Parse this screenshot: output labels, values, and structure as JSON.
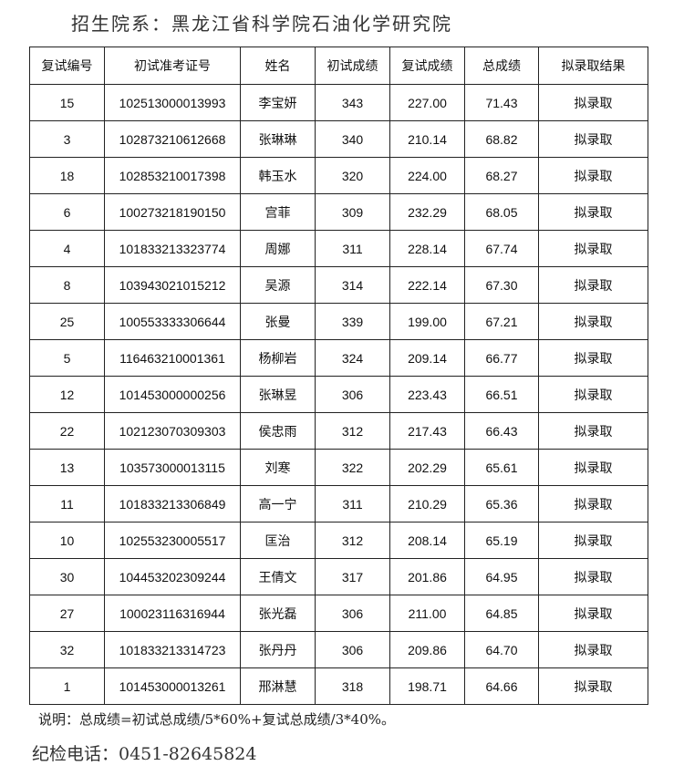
{
  "title": "招生院系：黑龙江省科学院石油化学研究院",
  "table": {
    "headers": [
      "复试编号",
      "初试准考证号",
      "姓名",
      "初试成绩",
      "复试成绩",
      "总成绩",
      "拟录取结果"
    ],
    "rows": [
      [
        "15",
        "102513000013993",
        "李宝妍",
        "343",
        "227.00",
        "71.43",
        "拟录取"
      ],
      [
        "3",
        "102873210612668",
        "张琳琳",
        "340",
        "210.14",
        "68.82",
        "拟录取"
      ],
      [
        "18",
        "102853210017398",
        "韩玉水",
        "320",
        "224.00",
        "68.27",
        "拟录取"
      ],
      [
        "6",
        "100273218190150",
        "宫菲",
        "309",
        "232.29",
        "68.05",
        "拟录取"
      ],
      [
        "4",
        "101833213323774",
        "周娜",
        "311",
        "228.14",
        "67.74",
        "拟录取"
      ],
      [
        "8",
        "103943021015212",
        "吴源",
        "314",
        "222.14",
        "67.30",
        "拟录取"
      ],
      [
        "25",
        "100553333306644",
        "张曼",
        "339",
        "199.00",
        "67.21",
        "拟录取"
      ],
      [
        "5",
        "116463210001361",
        "杨柳岩",
        "324",
        "209.14",
        "66.77",
        "拟录取"
      ],
      [
        "12",
        "101453000000256",
        "张琳昱",
        "306",
        "223.43",
        "66.51",
        "拟录取"
      ],
      [
        "22",
        "102123070309303",
        "侯忠雨",
        "312",
        "217.43",
        "66.43",
        "拟录取"
      ],
      [
        "13",
        "103573000013115",
        "刘寒",
        "322",
        "202.29",
        "65.61",
        "拟录取"
      ],
      [
        "11",
        "101833213306849",
        "高一宁",
        "311",
        "210.29",
        "65.36",
        "拟录取"
      ],
      [
        "10",
        "102553230005517",
        "匡治",
        "312",
        "208.14",
        "65.19",
        "拟录取"
      ],
      [
        "30",
        "104453202309244",
        "王倩文",
        "317",
        "201.86",
        "64.95",
        "拟录取"
      ],
      [
        "27",
        "100023116316944",
        "张光磊",
        "306",
        "211.00",
        "64.85",
        "拟录取"
      ],
      [
        "32",
        "101833213314723",
        "张丹丹",
        "306",
        "209.86",
        "64.70",
        "拟录取"
      ],
      [
        "1",
        "101453000013261",
        "邢淋慧",
        "318",
        "198.71",
        "64.66",
        "拟录取"
      ]
    ]
  },
  "note": "说明：总成绩=初试总成绩/5*60%+复试总成绩/3*40%。",
  "phone": "纪检电话：0451-82645824"
}
